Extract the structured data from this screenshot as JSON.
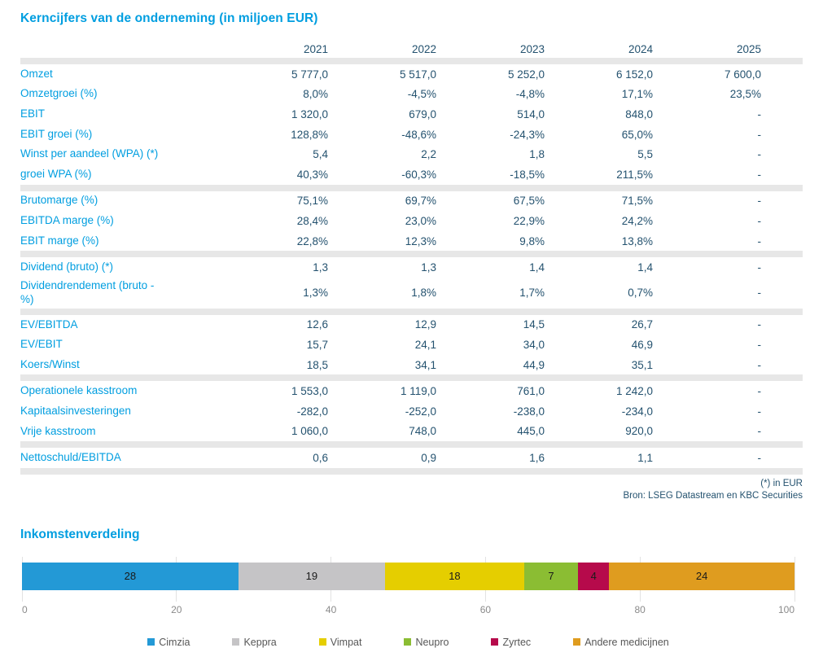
{
  "table": {
    "title": "Kerncijfers van de onderneming (in miljoen EUR)",
    "years": [
      "2021",
      "2022",
      "2023",
      "2024",
      "2025"
    ],
    "sections": [
      {
        "rows": [
          {
            "label": "Omzet",
            "values": [
              "5 777,0",
              "5 517,0",
              "5 252,0",
              "6 152,0",
              "7 600,0"
            ]
          },
          {
            "label": "Omzetgroei (%)",
            "values": [
              "8,0%",
              "-4,5%",
              "-4,8%",
              "17,1%",
              "23,5%"
            ]
          },
          {
            "label": "EBIT",
            "values": [
              "1 320,0",
              "679,0",
              "514,0",
              "848,0",
              "-"
            ]
          },
          {
            "label": "EBIT groei (%)",
            "values": [
              "128,8%",
              "-48,6%",
              "-24,3%",
              "65,0%",
              "-"
            ]
          },
          {
            "label": "Winst per aandeel (WPA) (*)",
            "values": [
              "5,4",
              "2,2",
              "1,8",
              "5,5",
              "-"
            ]
          },
          {
            "label": "groei WPA (%)",
            "values": [
              "40,3%",
              "-60,3%",
              "-18,5%",
              "211,5%",
              "-"
            ]
          }
        ]
      },
      {
        "rows": [
          {
            "label": "Brutomarge (%)",
            "values": [
              "75,1%",
              "69,7%",
              "67,5%",
              "71,5%",
              "-"
            ]
          },
          {
            "label": "EBITDA marge (%)",
            "values": [
              "28,4%",
              "23,0%",
              "22,9%",
              "24,2%",
              "-"
            ]
          },
          {
            "label": "EBIT marge (%)",
            "values": [
              "22,8%",
              "12,3%",
              "9,8%",
              "13,8%",
              "-"
            ]
          }
        ]
      },
      {
        "rows": [
          {
            "label": "Dividend (bruto) (*)",
            "values": [
              "1,3",
              "1,3",
              "1,4",
              "1,4",
              "-"
            ]
          },
          {
            "label": "Dividendrendement (bruto - %)",
            "values": [
              "1,3%",
              "1,8%",
              "1,7%",
              "0,7%",
              "-"
            ]
          }
        ]
      },
      {
        "rows": [
          {
            "label": "EV/EBITDA",
            "values": [
              "12,6",
              "12,9",
              "14,5",
              "26,7",
              "-"
            ]
          },
          {
            "label": "EV/EBIT",
            "values": [
              "15,7",
              "24,1",
              "34,0",
              "46,9",
              "-"
            ]
          },
          {
            "label": "Koers/Winst",
            "values": [
              "18,5",
              "34,1",
              "44,9",
              "35,1",
              "-"
            ]
          }
        ]
      },
      {
        "rows": [
          {
            "label": "Operationele kasstroom",
            "values": [
              "1 553,0",
              "1 119,0",
              "761,0",
              "1 242,0",
              "-"
            ]
          },
          {
            "label": "Kapitaalsinvesteringen",
            "values": [
              "-282,0",
              "-252,0",
              "-238,0",
              "-234,0",
              "-"
            ]
          },
          {
            "label": "Vrije kasstroom",
            "values": [
              "1 060,0",
              "748,0",
              "445,0",
              "920,0",
              "-"
            ]
          }
        ]
      },
      {
        "rows": [
          {
            "label": "Nettoschuld/EBITDA",
            "values": [
              "0,6",
              "0,9",
              "1,6",
              "1,1",
              "-"
            ]
          }
        ]
      }
    ],
    "footnotes": [
      "(*) in EUR",
      "Bron: LSEG Datastream en KBC Securities"
    ]
  },
  "chart_data": {
    "type": "bar",
    "stacked": true,
    "orientation": "horizontal",
    "title": "Inkomstenverdeling",
    "segments": [
      {
        "name": "Cimzia",
        "value": 28,
        "color": "#2399D6"
      },
      {
        "name": "Keppra",
        "value": 19,
        "color": "#C5C4C6"
      },
      {
        "name": "Vimpat",
        "value": 18,
        "color": "#E5CE00"
      },
      {
        "name": "Neupro",
        "value": 7,
        "color": "#8BBD33"
      },
      {
        "name": "Zyrtec",
        "value": 4,
        "color": "#B60A4B"
      },
      {
        "name": "Andere medicijnen",
        "value": 24,
        "color": "#DF9C1F"
      }
    ],
    "xlim": [
      0,
      100
    ],
    "xticks": [
      0,
      20,
      40,
      60,
      80,
      100
    ],
    "grid": true,
    "legend_position": "bottom"
  },
  "colors": {
    "accent_blue": "#009EE0",
    "value_text": "#24526F",
    "separator_gray": "#E7E7E7",
    "axis_text": "#8A8A8A",
    "legend_text": "#575757"
  }
}
